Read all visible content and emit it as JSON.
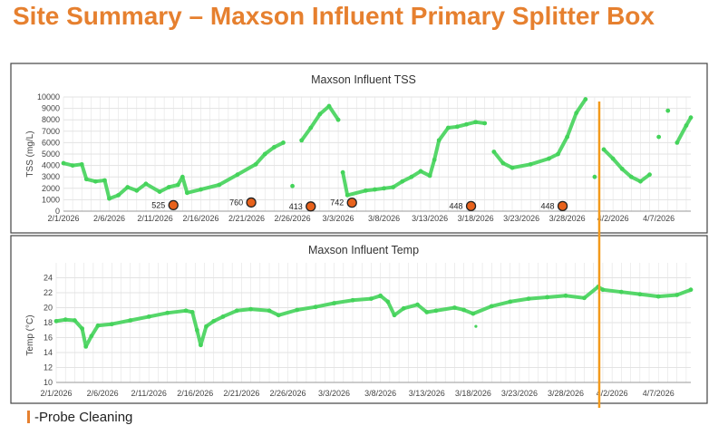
{
  "slide": {
    "title": "Site Summary – Maxson Influent Primary Splitter Box",
    "legend_note": "-Probe Cleaning",
    "colors": {
      "title": "#e6802f",
      "series": "#44d35a",
      "marker_fill": "#e8621c",
      "marker_stroke": "#222222",
      "cleaning_line": "#f39a1c",
      "grid": "#e3e3e3"
    }
  },
  "chart_data": [
    {
      "type": "scatter",
      "title": "Maxson Influent TSS",
      "xlabel": "",
      "ylabel": "TSS (mg/L)",
      "ylim": [
        0,
        10000
      ],
      "yticks": [
        0,
        1000,
        2000,
        3000,
        4000,
        5000,
        6000,
        7000,
        8000,
        9000,
        10000
      ],
      "x_tick_labels": [
        "2/1/2026",
        "2/6/2026",
        "2/11/2026",
        "2/16/2026",
        "2/21/2026",
        "2/26/2026",
        "3/3/2026",
        "3/8/2026",
        "3/13/2026",
        "3/18/2026",
        "3/23/2026",
        "3/28/2026",
        "4/2/2026",
        "4/7/2026"
      ],
      "x_day_range": [
        0,
        68.5
      ],
      "series": [
        {
          "name": "TSS",
          "points": [
            [
              0,
              4200
            ],
            [
              1,
              4000
            ],
            [
              2,
              4100
            ],
            [
              2.5,
              2800
            ],
            [
              3.5,
              2600
            ],
            [
              4.5,
              2700
            ],
            [
              5,
              1100
            ],
            [
              6,
              1400
            ],
            [
              7,
              2100
            ],
            [
              8,
              1800
            ],
            [
              9,
              2400
            ],
            [
              10.5,
              1700
            ],
            [
              11.5,
              2100
            ],
            [
              12.5,
              2300
            ],
            [
              13,
              3000
            ],
            [
              13.5,
              1600
            ],
            [
              15,
              1900
            ],
            [
              17,
              2300
            ],
            [
              19,
              3200
            ],
            [
              21,
              4100
            ],
            [
              22,
              5000
            ],
            [
              23,
              5600
            ],
            [
              24,
              6000
            ],
            [
              25,
              2200
            ],
            [
              26,
              6200
            ],
            [
              27,
              7300
            ],
            [
              28,
              8500
            ],
            [
              29,
              9200
            ],
            [
              30,
              8000
            ],
            [
              30.5,
              3400
            ],
            [
              31,
              1400
            ],
            [
              33,
              1800
            ],
            [
              34,
              1900
            ],
            [
              35,
              2000
            ],
            [
              36,
              2100
            ],
            [
              37,
              2600
            ],
            [
              38,
              3000
            ],
            [
              39,
              3500
            ],
            [
              40,
              3100
            ],
            [
              40.5,
              4500
            ],
            [
              41,
              6200
            ],
            [
              42,
              7300
            ],
            [
              43,
              7400
            ],
            [
              44,
              7600
            ],
            [
              45,
              7800
            ],
            [
              46,
              7700
            ],
            [
              47,
              5200
            ],
            [
              48,
              4200
            ],
            [
              49,
              3800
            ],
            [
              51,
              4100
            ],
            [
              53,
              4600
            ],
            [
              54,
              5000
            ],
            [
              55,
              6500
            ],
            [
              56,
              8600
            ],
            [
              57,
              9800
            ],
            [
              58,
              3000
            ],
            [
              59,
              5400
            ],
            [
              60,
              4600
            ],
            [
              61,
              3700
            ],
            [
              62,
              3000
            ],
            [
              63,
              2600
            ],
            [
              64,
              3200
            ],
            [
              65,
              6500
            ],
            [
              66,
              8800
            ],
            [
              67,
              6000
            ],
            [
              68,
              7500
            ],
            [
              68.5,
              8200
            ]
          ]
        }
      ],
      "labeled_points": [
        {
          "day": 12,
          "value": 525,
          "label": "525"
        },
        {
          "day": 20.5,
          "value": 760,
          "label": "760"
        },
        {
          "day": 27,
          "value": 413,
          "label": "413"
        },
        {
          "day": 31.5,
          "value": 742,
          "label": "742"
        },
        {
          "day": 44.5,
          "value": 448,
          "label": "448"
        },
        {
          "day": 54.5,
          "value": 448,
          "label": "448"
        }
      ],
      "cleaning_day": 58.5
    },
    {
      "type": "scatter",
      "title": "Maxson Influent Temp",
      "xlabel": "",
      "ylabel": "Temp (°C)",
      "ylim": [
        10,
        26
      ],
      "yticks": [
        10,
        12,
        14,
        16,
        18,
        20,
        22,
        24
      ],
      "x_tick_labels": [
        "2/1/2026",
        "2/6/2026",
        "2/11/2026",
        "2/16/2026",
        "2/21/2026",
        "2/26/2026",
        "3/3/2026",
        "3/8/2026",
        "3/13/2026",
        "3/18/2026",
        "3/23/2026",
        "3/28/2026",
        "4/2/2026",
        "4/7/2026"
      ],
      "x_day_range": [
        0,
        68.5
      ],
      "series": [
        {
          "name": "Temp",
          "points": [
            [
              0,
              18.2
            ],
            [
              1,
              18.4
            ],
            [
              2,
              18.3
            ],
            [
              2.8,
              17.2
            ],
            [
              3.2,
              14.8
            ],
            [
              3.8,
              16.2
            ],
            [
              4.5,
              17.6
            ],
            [
              6,
              17.8
            ],
            [
              8,
              18.3
            ],
            [
              10,
              18.8
            ],
            [
              12,
              19.3
            ],
            [
              14,
              19.6
            ],
            [
              14.7,
              19.4
            ],
            [
              15.2,
              17.0
            ],
            [
              15.6,
              15.0
            ],
            [
              16.2,
              17.5
            ],
            [
              17,
              18.2
            ],
            [
              18,
              18.8
            ],
            [
              19.5,
              19.6
            ],
            [
              21,
              19.8
            ],
            [
              23,
              19.6
            ],
            [
              24,
              19.0
            ],
            [
              26,
              19.7
            ],
            [
              28,
              20.1
            ],
            [
              30,
              20.6
            ],
            [
              32,
              21.0
            ],
            [
              34,
              21.2
            ],
            [
              35,
              21.6
            ],
            [
              35.8,
              20.8
            ],
            [
              36.5,
              19.0
            ],
            [
              37.5,
              19.9
            ],
            [
              39,
              20.4
            ],
            [
              40,
              19.4
            ],
            [
              41,
              19.6
            ],
            [
              43,
              20.0
            ],
            [
              44,
              19.7
            ],
            [
              45,
              19.2
            ],
            [
              47,
              20.2
            ],
            [
              49,
              20.8
            ],
            [
              51,
              21.2
            ],
            [
              53,
              21.4
            ],
            [
              55,
              21.6
            ],
            [
              57,
              21.3
            ],
            [
              58.5,
              22.8
            ],
            [
              59,
              22.4
            ],
            [
              61,
              22.1
            ],
            [
              63,
              21.8
            ],
            [
              65,
              21.5
            ],
            [
              67,
              21.7
            ],
            [
              68.5,
              22.4
            ]
          ]
        }
      ],
      "outlier_points": [
        [
          45.3,
          17.5
        ]
      ],
      "cleaning_day": 58.5
    }
  ]
}
